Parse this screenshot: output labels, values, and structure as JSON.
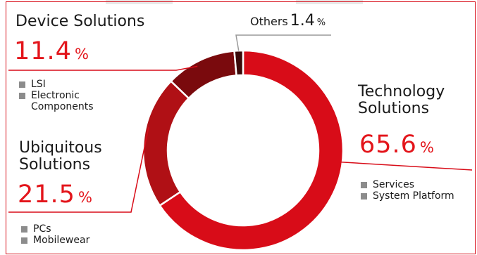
{
  "chart_data": {
    "type": "pie",
    "variant": "donut",
    "slices": [
      {
        "name": "Technology Solutions",
        "value": 65.6,
        "value_label": "65.6",
        "unit": "%",
        "color": "#d80c18",
        "items": [
          "Services",
          "System Platform"
        ]
      },
      {
        "name": "Ubiquitous Solutions",
        "value": 21.5,
        "value_label": "21.5",
        "unit": "%",
        "color": "#b01015",
        "items": [
          "PCs",
          "Mobilewear"
        ]
      },
      {
        "name": "Device Solutions",
        "value": 11.4,
        "value_label": "11.4",
        "unit": "%",
        "color": "#7a0a0d",
        "items": [
          "LSI",
          "Electronic Components"
        ]
      },
      {
        "name": "Others",
        "value": 1.4,
        "value_label": "1.4",
        "unit": "%",
        "color": "#3b0a0a",
        "items": []
      }
    ],
    "colors": {
      "accent": "#e3151b",
      "frame": "#d80c18",
      "bullet": "#8c8c8c",
      "separator": "#ffffff",
      "leader": "#d80c18",
      "leader_dark": "#9a9a9a"
    }
  }
}
